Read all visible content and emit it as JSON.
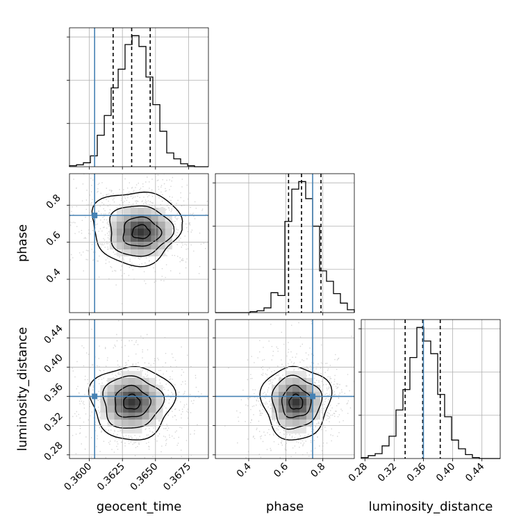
{
  "chart_data": {
    "type": "corner",
    "parameters": [
      "geocent_time",
      "phase",
      "luminosity_distance"
    ],
    "truths": {
      "geocent_time": 0.3604,
      "phase": 0.745,
      "luminosity_distance": 0.36
    },
    "colors": {
      "truth": "#4682b4",
      "hist": "#000000",
      "grid": "#b0b0b0",
      "points": "#888888"
    },
    "grid": true,
    "marginals": [
      {
        "parameter": "geocent_time",
        "range": [
          0.3585,
          0.369
        ],
        "quantiles": [
          0.3618,
          0.3632,
          0.3646
        ],
        "bin_edges": [
          0.3585,
          0.35903,
          0.35955,
          0.36008,
          0.3606,
          0.36113,
          0.36165,
          0.36218,
          0.3627,
          0.36323,
          0.36375,
          0.36428,
          0.3648,
          0.36533,
          0.36585,
          0.36638,
          0.3669,
          0.36743,
          0.36795,
          0.36848,
          0.369
        ],
        "counts": [
          1,
          2,
          4,
          11,
          32,
          52,
          80,
          99,
          124,
          133,
          122,
          91,
          63,
          36,
          14,
          8,
          3,
          1,
          0,
          0
        ],
        "ticks": [],
        "tick_labels": []
      },
      {
        "parameter": "phase",
        "range": [
          0.22,
          0.97
        ],
        "quantiles": [
          0.615,
          0.685,
          0.79
        ],
        "bin_edges": [
          0.22,
          0.2575,
          0.295,
          0.3325,
          0.37,
          0.4075,
          0.445,
          0.4825,
          0.52,
          0.5575,
          0.595,
          0.6325,
          0.67,
          0.7075,
          0.745,
          0.7825,
          0.82,
          0.8575,
          0.895,
          0.9325,
          0.97
        ],
        "counts": [
          0,
          0,
          0,
          0,
          0,
          1,
          2,
          5,
          21,
          18,
          96,
          130,
          138,
          120,
          91,
          44,
          33,
          20,
          10,
          3
        ],
        "ticks": [],
        "tick_labels": []
      },
      {
        "parameter": "luminosity_distance",
        "range": [
          0.275,
          0.465
        ],
        "quantiles": [
          0.335,
          0.359,
          0.383
        ],
        "bin_edges": [
          0.275,
          0.2845,
          0.294,
          0.3035,
          0.313,
          0.3225,
          0.332,
          0.3415,
          0.351,
          0.3605,
          0.37,
          0.3795,
          0.389,
          0.3985,
          0.408,
          0.4175,
          0.427,
          0.4365,
          0.446,
          0.4555,
          0.465
        ],
        "counts": [
          1,
          3,
          5,
          13,
          23,
          50,
          71,
          104,
          135,
          121,
          108,
          66,
          43,
          19,
          10,
          4,
          1,
          0,
          0,
          0
        ],
        "ticks": [
          0.28,
          0.32,
          0.36,
          0.4,
          0.44
        ],
        "tick_labels": [
          "0.28",
          "0.32",
          "0.36",
          "0.40",
          "0.44"
        ]
      }
    ],
    "joints": [
      {
        "x": "geocent_time",
        "y": "phase",
        "x_range": [
          0.3585,
          0.369
        ],
        "y_range": [
          0.22,
          0.97
        ],
        "mode": [
          0.3639,
          0.655
        ]
      },
      {
        "x": "geocent_time",
        "y": "luminosity_distance",
        "x_range": [
          0.3585,
          0.369
        ],
        "y_range": [
          0.275,
          0.465
        ],
        "mode": [
          0.3632,
          0.352
        ]
      },
      {
        "x": "phase",
        "y": "luminosity_distance",
        "x_range": [
          0.22,
          0.97
        ],
        "y_range": [
          0.275,
          0.465
        ],
        "mode": [
          0.655,
          0.352
        ]
      }
    ],
    "axes": {
      "geocent_time": {
        "label": "geocent_time",
        "ticks": [
          0.36,
          0.3625,
          0.365,
          0.3675
        ],
        "tick_labels": [
          "0.3600",
          "0.3625",
          "0.3650",
          "0.3675"
        ]
      },
      "phase_x": {
        "label": "phase",
        "ticks": [
          0.4,
          0.6,
          0.8
        ],
        "tick_labels": [
          "0.4",
          "0.6",
          "0.8"
        ]
      },
      "phase_y": {
        "label": "phase",
        "ticks": [
          0.4,
          0.6,
          0.8
        ],
        "tick_labels": [
          "0.4",
          "0.6",
          "0.8"
        ]
      },
      "luminosity_distance_y": {
        "label": "luminosity_distance",
        "ticks": [
          0.28,
          0.32,
          0.36,
          0.4,
          0.44
        ],
        "tick_labels": [
          "0.28",
          "0.32",
          "0.36",
          "0.40",
          "0.44"
        ]
      },
      "luminosity_distance_x": {
        "label": "luminosity_distance",
        "ticks": [
          0.28,
          0.32,
          0.36,
          0.4,
          0.44
        ],
        "tick_labels": [
          "0.28",
          "0.32",
          "0.36",
          "0.40",
          "0.44"
        ]
      }
    }
  }
}
